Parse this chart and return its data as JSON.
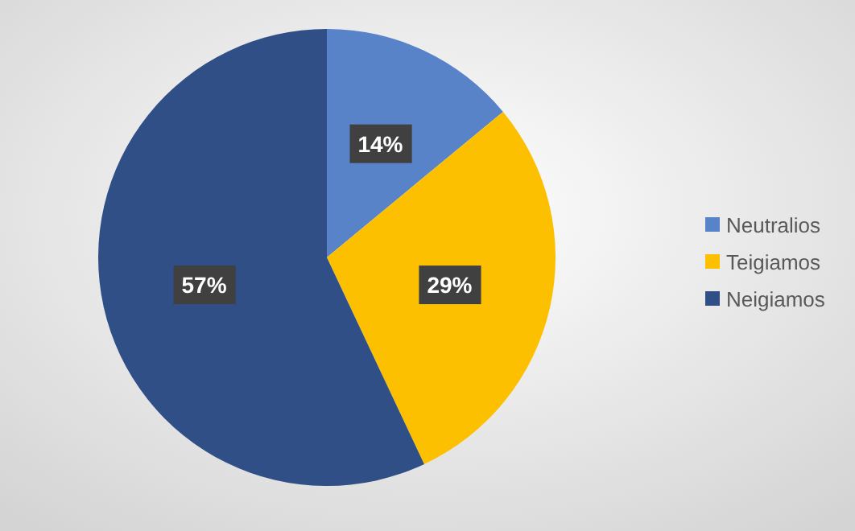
{
  "chart_data": {
    "type": "pie",
    "categories": [
      "Neutralios",
      "Teigiamos",
      "Neigiamos"
    ],
    "values": [
      14,
      29,
      57
    ],
    "colors": [
      "#5883c8",
      "#fdc000",
      "#2f4f86"
    ],
    "value_labels": [
      "14%",
      "29%",
      "57%"
    ],
    "legend": "right"
  }
}
